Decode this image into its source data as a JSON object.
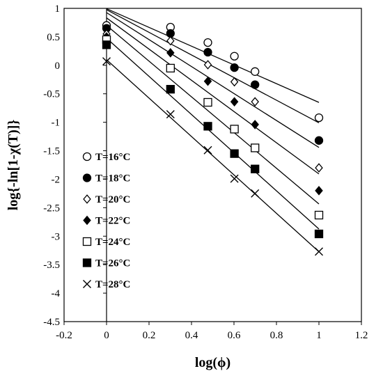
{
  "chart_data": {
    "type": "scatter",
    "xlabel": "log(ϕ)",
    "ylabel": "log{-ln[1-χ(T)]}",
    "xlim": [
      -0.2,
      1.2
    ],
    "ylim": [
      -4.5,
      1
    ],
    "xticks": [
      -0.2,
      0,
      0.2,
      0.4,
      0.6,
      0.8,
      1,
      1.2
    ],
    "yticks": [
      1,
      0.5,
      0,
      -0.5,
      -1,
      -1.5,
      -2,
      -2.5,
      -3,
      -3.5,
      -4,
      -4.5
    ],
    "xtick_labels": [
      "-0.2",
      "0",
      "0.2",
      "0.4",
      "0.6",
      "0.8",
      "1",
      "1.2"
    ],
    "ytick_labels": [
      "1",
      "0.5",
      "0",
      "-0.5",
      "-1",
      "-1.5",
      "-2",
      "-2.5",
      "-3",
      "-3.5",
      "-4",
      "-4.5"
    ],
    "grid": false,
    "legend_position": "left-middle",
    "trendlines": "linear fit per series",
    "x": [
      0,
      0.301,
      0.477,
      0.602,
      0.699,
      1
    ],
    "series": [
      {
        "name": "T=16°C",
        "marker": "circle-open",
        "values": [
          0.7,
          0.67,
          0.4,
          0.16,
          -0.11,
          -0.92
        ]
      },
      {
        "name": "T=18°C",
        "marker": "circle-filled",
        "values": [
          0.65,
          0.56,
          0.23,
          -0.04,
          -0.34,
          -1.32
        ]
      },
      {
        "name": "T=20°C",
        "marker": "diamond-open",
        "values": [
          0.55,
          0.43,
          0.01,
          -0.29,
          -0.64,
          -1.8
        ]
      },
      {
        "name": "T=22°C",
        "marker": "diamond-filled",
        "values": [
          0.5,
          0.22,
          -0.28,
          -0.64,
          -1.04,
          -2.2
        ]
      },
      {
        "name": "T=24°C",
        "marker": "square-open",
        "values": [
          0.45,
          -0.05,
          -0.65,
          -1.12,
          -1.45,
          -2.63
        ]
      },
      {
        "name": "T=26°C",
        "marker": "square-filled",
        "values": [
          0.36,
          -0.42,
          -1.07,
          -1.55,
          -1.82,
          -2.96
        ]
      },
      {
        "name": "T=28°C",
        "marker": "cross",
        "values": [
          0.07,
          -0.86,
          -1.49,
          -1.99,
          -2.25,
          -3.27
        ]
      }
    ]
  }
}
